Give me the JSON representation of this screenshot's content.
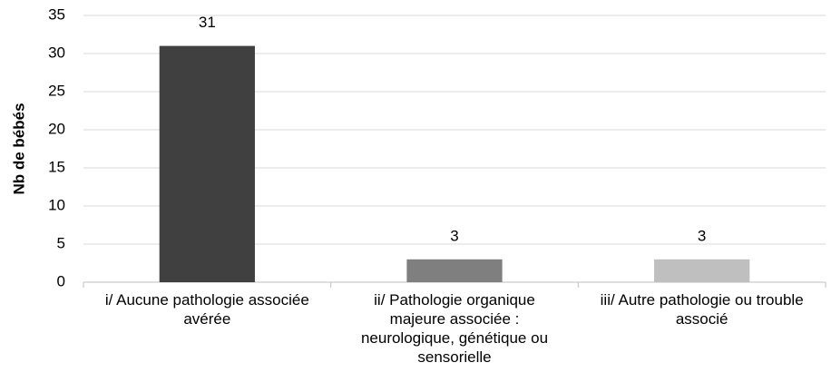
{
  "chart_data": {
    "type": "bar",
    "y_label": "Nb de bébés",
    "categories": [
      "i/ Aucune pathologie associée avérée",
      "ii/ Pathologie organique majeure associée : neurologique, génétique ou sensorielle",
      "iii/ Autre pathologie ou trouble associé"
    ],
    "values": [
      31,
      3,
      3
    ],
    "colors": [
      "#404040",
      "#7f7f7f",
      "#bfbfbf"
    ],
    "ylim": [
      0,
      35
    ],
    "yticks": [
      0,
      5,
      10,
      15,
      20,
      25,
      30,
      35
    ],
    "grid": true,
    "data_labels": true
  }
}
